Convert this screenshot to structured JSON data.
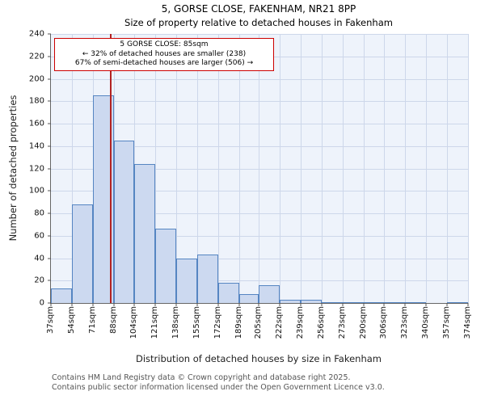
{
  "title": "5, GORSE CLOSE, FAKENHAM, NR21 8PP",
  "subtitle": "Size of property relative to detached houses in Fakenham",
  "chart_data": {
    "type": "bar",
    "title": "5, GORSE CLOSE, FAKENHAM, NR21 8PP",
    "subtitle": "Size of property relative to detached houses in Fakenham",
    "xlabel": "Distribution of detached houses by size in Fakenham",
    "ylabel": "Number of detached properties",
    "ylim": [
      0,
      240
    ],
    "ytick_step": 20,
    "grid": true,
    "legend": false,
    "bin_edges_sqm": [
      37,
      54,
      71,
      88,
      104,
      121,
      138,
      155,
      172,
      189,
      205,
      222,
      239,
      256,
      273,
      290,
      306,
      323,
      340,
      357,
      374
    ],
    "x_tick_labels": [
      "37sqm",
      "54sqm",
      "71sqm",
      "88sqm",
      "104sqm",
      "121sqm",
      "138sqm",
      "155sqm",
      "172sqm",
      "189sqm",
      "205sqm",
      "222sqm",
      "239sqm",
      "256sqm",
      "273sqm",
      "290sqm",
      "306sqm",
      "323sqm",
      "340sqm",
      "357sqm",
      "374sqm"
    ],
    "values": [
      13,
      88,
      185,
      145,
      124,
      66,
      40,
      43,
      18,
      8,
      16,
      3,
      3,
      1,
      1,
      1,
      1,
      1,
      0,
      1
    ],
    "marker": {
      "label": "5 GORSE CLOSE: 85sqm",
      "value_sqm": 85,
      "color": "#b22222"
    },
    "annotation": {
      "border_color": "#cc0000",
      "lines": [
        "5 GORSE CLOSE: 85sqm",
        "← 32% of detached houses are smaller (238)",
        "67% of semi-detached houses are larger (506) →"
      ]
    },
    "colors": {
      "bar_fill": "#ccd9f0",
      "bar_border": "#5585c2",
      "grid": "#cdd7ea",
      "plot_bg": "#eef3fb"
    }
  },
  "footer": {
    "line1": "Contains HM Land Registry data © Crown copyright and database right 2025.",
    "line2": "Contains public sector information licensed under the Open Government Licence v3.0."
  }
}
